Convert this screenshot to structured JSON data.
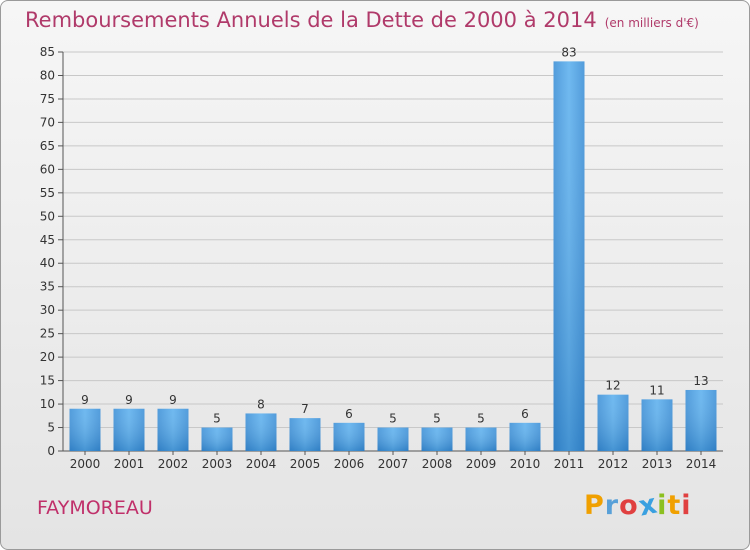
{
  "title": "Remboursements Annuels de la Dette de 2000 à 2014",
  "unit": "(en milliers d'€)",
  "commune": "FAYMOREAU",
  "logo": {
    "letters": [
      "P",
      "r",
      "o",
      "x",
      "i",
      "t",
      "i"
    ],
    "colors": [
      "#f0a000",
      "#58a0d8",
      "#e04040",
      "#3aa0e0",
      "#8cc020",
      "#f0a000",
      "#e04040"
    ]
  },
  "colors": {
    "bar": "#4a9ee0",
    "title": "#b03a6a",
    "commune": "#c0306a"
  },
  "chart_data": {
    "type": "bar",
    "categories": [
      "2000",
      "2001",
      "2002",
      "2003",
      "2004",
      "2005",
      "2006",
      "2007",
      "2008",
      "2009",
      "2010",
      "2011",
      "2012",
      "2013",
      "2014"
    ],
    "values": [
      9,
      9,
      9,
      5,
      8,
      7,
      6,
      5,
      5,
      5,
      6,
      83,
      12,
      11,
      13
    ],
    "ylim": [
      0,
      85
    ],
    "yticks": [
      0,
      5,
      10,
      15,
      20,
      25,
      30,
      35,
      40,
      45,
      50,
      55,
      60,
      65,
      70,
      75,
      80,
      85
    ],
    "grid": true
  }
}
